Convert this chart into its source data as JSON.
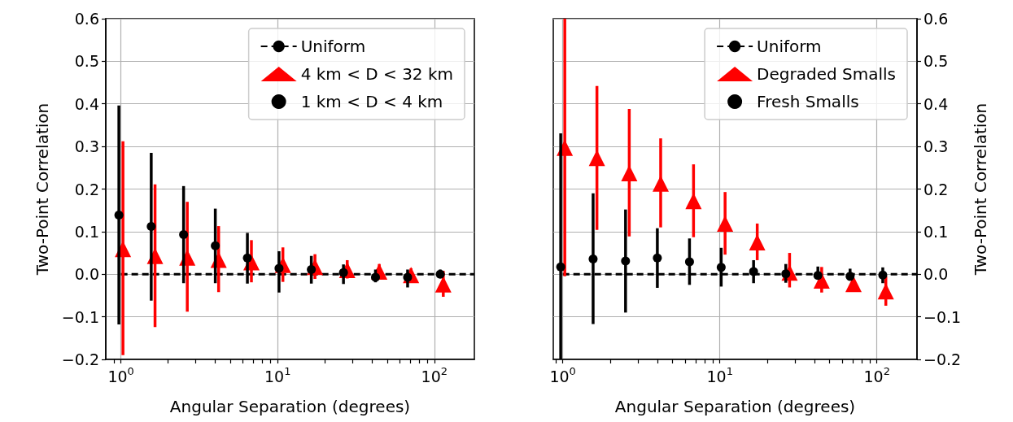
{
  "chart_data": [
    {
      "type": "scatter",
      "xlabel": "Angular Separation (degrees)",
      "ylabel": "Two-Point Correlation",
      "log": "x",
      "grid": true,
      "legend": "top right",
      "xlim": [
        0.8,
        180
      ],
      "xticks": [
        {
          "value": 0.9,
          "label": null
        },
        {
          "value": 1,
          "label": "10$^{0}$"
        },
        {
          "value": 2,
          "label": null
        },
        {
          "value": 3,
          "label": null
        },
        {
          "value": 4,
          "label": null
        },
        {
          "value": 5,
          "label": null
        },
        {
          "value": 6,
          "label": null
        },
        {
          "value": 7,
          "label": null
        },
        {
          "value": 8,
          "label": null
        },
        {
          "value": 9,
          "label": null
        },
        {
          "value": 10,
          "label": "10$^{1}$"
        },
        {
          "value": 20,
          "label": null
        },
        {
          "value": 30,
          "label": null
        },
        {
          "value": 40,
          "label": null
        },
        {
          "value": 50,
          "label": null
        },
        {
          "value": 60,
          "label": null
        },
        {
          "value": 70,
          "label": null
        },
        {
          "value": 80,
          "label": null
        },
        {
          "value": 90,
          "label": null
        },
        {
          "value": 100,
          "label": "10$^{2}$"
        }
      ],
      "ylim": [
        -0.2,
        0.6
      ],
      "yticks": [
        {
          "value": -0.2,
          "label": "−0.2"
        },
        {
          "value": -0.1,
          "label": "−0.1"
        },
        {
          "value": 0,
          "label": "0.0"
        },
        {
          "value": 0.1,
          "label": "0.1"
        },
        {
          "value": 0.2,
          "label": "0.2"
        },
        {
          "value": 0.3,
          "label": "0.3"
        },
        {
          "value": 0.4,
          "label": "0.4"
        },
        {
          "value": 0.5,
          "label": "0.5"
        },
        {
          "value": 0.6,
          "label": "0.6"
        }
      ],
      "series": [
        {
          "name": "Uniform",
          "type": "line",
          "color": "#000000",
          "line_style": "dashed",
          "marker": "none",
          "x": [
            1,
            180
          ],
          "values": [
            0,
            0
          ]
        },
        {
          "name": "4 km < D < 32 km",
          "color": "#ff0000",
          "marker": "triangle",
          "x": [
            1.03,
            1.65,
            2.65,
            4.2,
            6.8,
            10.8,
            17.3,
            27.8,
            44.5,
            71,
            114
          ],
          "values": [
            0.059,
            0.043,
            0.039,
            0.034,
            0.028,
            0.022,
            0.017,
            0.01,
            0.006,
            -0.002,
            -0.024
          ],
          "errors": [
            [
              -0.19,
              0.312
            ],
            [
              -0.124,
              0.211
            ],
            [
              -0.088,
              0.17
            ],
            [
              -0.042,
              0.113
            ],
            [
              -0.019,
              0.08
            ],
            [
              -0.018,
              0.063
            ],
            [
              -0.011,
              0.047
            ],
            [
              -0.01,
              0.033
            ],
            [
              0.006,
              0.024
            ],
            [
              -0.002,
              0.014
            ],
            [
              -0.053,
              0.008
            ]
          ]
        },
        {
          "name": "1 km < D < 4 km",
          "color": "#000000",
          "marker": "circle",
          "x": [
            0.97,
            1.56,
            2.51,
            4.0,
            6.41,
            10.2,
            16.4,
            26.3,
            42.1,
            67.5,
            109
          ],
          "values": [
            0.139,
            0.112,
            0.093,
            0.067,
            0.038,
            0.014,
            0.011,
            0.004,
            -0.007,
            -0.007,
            0.0
          ],
          "errors": [
            [
              -0.118,
              0.396
            ],
            [
              -0.062,
              0.285
            ],
            [
              -0.021,
              0.207
            ],
            [
              -0.021,
              0.154
            ],
            [
              -0.022,
              0.097
            ],
            [
              -0.043,
              0.054
            ],
            [
              -0.022,
              0.043
            ],
            [
              -0.023,
              0.023
            ],
            [
              -0.019,
              0.011
            ],
            [
              -0.031,
              0.011
            ],
            [
              -0.008,
              0.011
            ]
          ]
        }
      ]
    },
    {
      "type": "scatter",
      "xlabel": "Angular Separation (degrees)",
      "y2label": "Two-Point Correlation",
      "log": "x",
      "grid": true,
      "legend": "top right",
      "xlim": [
        0.87,
        180
      ],
      "xticks": [
        {
          "value": 0.9,
          "label": null
        },
        {
          "value": 1,
          "label": "10$^{0}$"
        },
        {
          "value": 2,
          "label": null
        },
        {
          "value": 3,
          "label": null
        },
        {
          "value": 4,
          "label": null
        },
        {
          "value": 5,
          "label": null
        },
        {
          "value": 6,
          "label": null
        },
        {
          "value": 7,
          "label": null
        },
        {
          "value": 8,
          "label": null
        },
        {
          "value": 9,
          "label": null
        },
        {
          "value": 10,
          "label": "10$^{1}$"
        },
        {
          "value": 20,
          "label": null
        },
        {
          "value": 30,
          "label": null
        },
        {
          "value": 40,
          "label": null
        },
        {
          "value": 50,
          "label": null
        },
        {
          "value": 60,
          "label": null
        },
        {
          "value": 70,
          "label": null
        },
        {
          "value": 80,
          "label": null
        },
        {
          "value": 90,
          "label": null
        },
        {
          "value": 100,
          "label": "10$^{2}$"
        }
      ],
      "y2lim": [
        -0.2,
        0.6
      ],
      "y2ticks": [
        {
          "value": -0.2,
          "label": "−0.2"
        },
        {
          "value": -0.1,
          "label": "−0.1"
        },
        {
          "value": 0,
          "label": "0.0"
        },
        {
          "value": 0.1,
          "label": "0.1"
        },
        {
          "value": 0.2,
          "label": "0.2"
        },
        {
          "value": 0.3,
          "label": "0.3"
        },
        {
          "value": 0.4,
          "label": "0.4"
        },
        {
          "value": 0.5,
          "label": "0.5"
        },
        {
          "value": 0.6,
          "label": "0.6"
        }
      ],
      "series": [
        {
          "name": "Uniform",
          "type": "line",
          "axis": "y2",
          "color": "#000000",
          "line_style": "dashed",
          "marker": "none",
          "x": [
            1,
            180
          ],
          "values": [
            0,
            0
          ]
        },
        {
          "name": "Degraded Smalls",
          "axis": "y2",
          "color": "#ff0000",
          "marker": "triangle",
          "x": [
            1.03,
            1.65,
            2.65,
            4.2,
            6.8,
            10.8,
            17.3,
            27.8,
            44.5,
            71,
            114
          ],
          "values": [
            0.297,
            0.273,
            0.237,
            0.213,
            0.172,
            0.119,
            0.075,
            0.004,
            -0.015,
            -0.023,
            -0.04
          ],
          "errors": [
            [
              -0.005,
              0.6
            ],
            [
              0.104,
              0.442
            ],
            [
              0.089,
              0.388
            ],
            [
              0.11,
              0.319
            ],
            [
              0.087,
              0.258
            ],
            [
              0.046,
              0.193
            ],
            [
              0.033,
              0.119
            ],
            [
              -0.031,
              0.05
            ],
            [
              -0.043,
              0.017
            ],
            [
              -0.04,
              -0.012
            ],
            [
              -0.074,
              -0.005
            ]
          ]
        },
        {
          "name": "Fresh Smalls",
          "axis": "y2",
          "color": "#000000",
          "marker": "circle",
          "x": [
            0.97,
            1.56,
            2.51,
            4.0,
            6.41,
            10.2,
            16.4,
            26.3,
            42.1,
            67.5,
            109
          ],
          "values": [
            0.017,
            0.036,
            0.031,
            0.038,
            0.029,
            0.016,
            0.006,
            0.001,
            -0.003,
            -0.005,
            -0.002
          ],
          "errors": [
            [
              -0.2,
              0.331
            ],
            [
              -0.117,
              0.19
            ],
            [
              -0.09,
              0.152
            ],
            [
              -0.032,
              0.108
            ],
            [
              -0.025,
              0.084
            ],
            [
              -0.029,
              0.062
            ],
            [
              -0.021,
              0.033
            ],
            [
              -0.02,
              0.024
            ],
            [
              -0.011,
              0.018
            ],
            [
              -0.015,
              0.013
            ],
            [
              -0.021,
              0.016
            ]
          ]
        }
      ]
    }
  ]
}
